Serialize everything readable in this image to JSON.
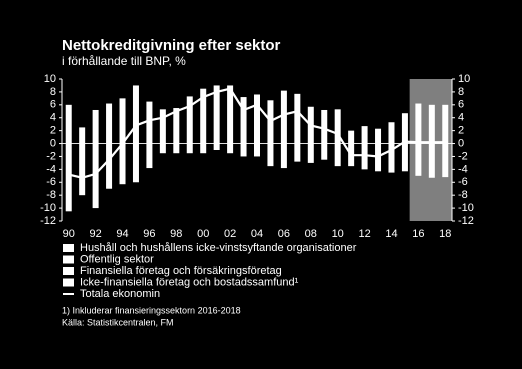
{
  "chart_data": {
    "type": "bar",
    "title": "Nettokreditgivning efter sektor",
    "subtitle": "i förhållande till BNP, %",
    "categories": [
      "90",
      null,
      "92",
      null,
      "94",
      null,
      "96",
      null,
      "98",
      null,
      "00",
      null,
      "02",
      null,
      "04",
      null,
      "06",
      null,
      "08",
      null,
      "10",
      null,
      "12",
      null,
      "14",
      null,
      "16",
      null,
      "18"
    ],
    "series": [
      {
        "name": "Hushåll och hushållens icke-vinstsyftande organisationer",
        "color": "#ffffff",
        "values": [
          6,
          2.5,
          5.2,
          6.2,
          7,
          9,
          6.5,
          5.3,
          5.5,
          7.3,
          8.5,
          9,
          9,
          7.2,
          7.6,
          6.7,
          8.2,
          7.7,
          5.7,
          5.2,
          5.3,
          2,
          2.7,
          2.3,
          3.3,
          4.7,
          6.2,
          6,
          6
        ]
      },
      {
        "name": "Offentlig sektor",
        "color": "#ffffff",
        "values": [
          null,
          null,
          null,
          null,
          null,
          null,
          null,
          null,
          null,
          null,
          null,
          null,
          null,
          null,
          null,
          null,
          null,
          null,
          null,
          null,
          null,
          null,
          null,
          null,
          null,
          null,
          null,
          null,
          null
        ]
      },
      {
        "name": "Finansiella företag och försäkringsföretag",
        "color": "#ffffff",
        "values": [
          null,
          null,
          null,
          null,
          null,
          null,
          null,
          null,
          null,
          null,
          null,
          null,
          null,
          null,
          null,
          null,
          null,
          null,
          null,
          null,
          null,
          null,
          null,
          null,
          null,
          null,
          null,
          null,
          null
        ]
      },
      {
        "name": "Icke-finansiella företag och bostadssamfund¹",
        "color": "#ffffff",
        "values": [
          -10.5,
          -8,
          -10,
          -7,
          -6.3,
          -6,
          -3.8,
          -1.5,
          -1.5,
          -1.5,
          -1.5,
          -1,
          -1.5,
          -2,
          -2,
          -3.5,
          -3.8,
          -2.8,
          -3,
          -2.5,
          -3.5,
          -3.5,
          -4,
          -4.3,
          -4.5,
          -4.3,
          -5,
          -5.3,
          -5.2
        ]
      },
      {
        "name": "Totala ekonomin",
        "color": "#ffffff",
        "line": true,
        "values": [
          -4.8,
          -5.3,
          -4.7,
          -2.5,
          0,
          2.8,
          3.6,
          4,
          5,
          5.8,
          7.2,
          8,
          8.5,
          5.2,
          6,
          3.5,
          4.5,
          5,
          2.8,
          2.3,
          1.5,
          -1.8,
          -1.8,
          -2,
          -1,
          0.3,
          0.2,
          0.2,
          0.2
        ]
      }
    ],
    "ylim": [
      -12,
      10
    ],
    "yticks": [
      -12,
      -10,
      -8,
      -6,
      -4,
      -2,
      0,
      2,
      4,
      6,
      8,
      10
    ],
    "footnote": "1) Inkluderar finansieringssektorn 2016-2018",
    "source": "Källa: Statistikcentralen, FM"
  }
}
